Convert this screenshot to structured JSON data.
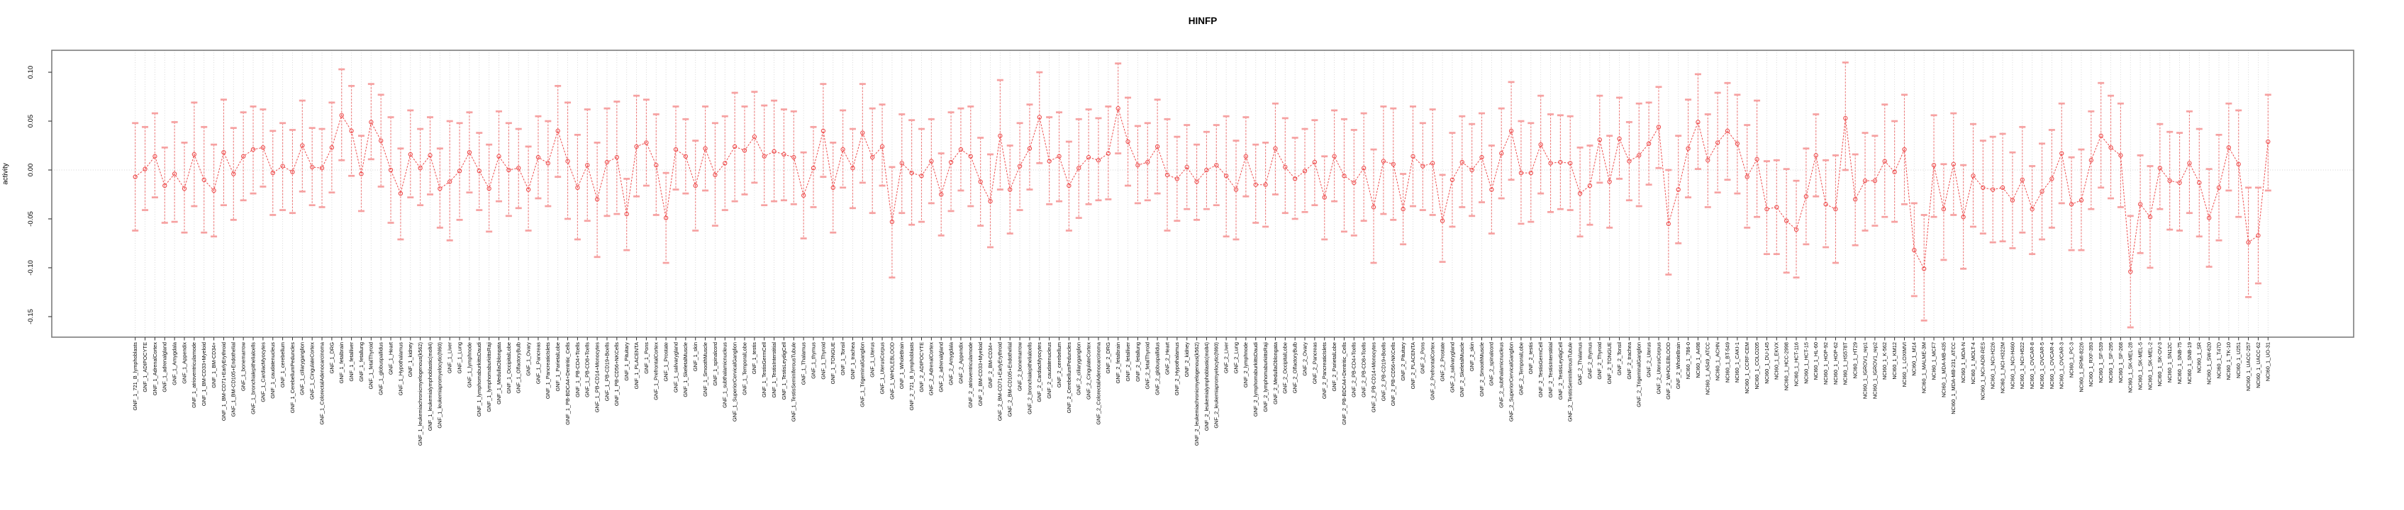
{
  "chart_data": {
    "type": "line",
    "subtype": "point-estimates-with-error-bars",
    "title": "HINFP",
    "ylabel": "activity",
    "xlabel": "",
    "ylim": [
      -0.171,
      0.122
    ],
    "yticks": [
      0.1,
      0.05,
      0.0,
      -0.05,
      -0.1,
      -0.15
    ],
    "ytick_labels": [
      "0.10",
      "0.05",
      "0.00",
      "-0.05",
      "-0.10",
      "-0.15"
    ],
    "grid": "vertical dotted gridline per category; dotted horizontal line at y=0; no legend",
    "colors": {
      "point": "#ee4b4b",
      "line": "#ee4b4b",
      "whisker": "#ee6a6a",
      "cap": "#f6a1a1",
      "grid": "#d4d4d4",
      "border": "#7d7d7d",
      "text": "#000000"
    },
    "categories": [
      "GNF_1_721_B_lymphoblasts",
      "GNF_1_ADIPOCYTE",
      "GNF_1_AdrenalCortex",
      "GNF_1_adrenalgland",
      "GNF_1_Amygdala",
      "GNF_1_Appendix",
      "GNF_1_atrioventricularnode",
      "GNF_1_BM-CD33+Myeloid",
      "GNF_1_BM-CD34+",
      "GNF_1_BM-CD71+EarlyErythroid",
      "GNF_1_BM-CD105+Endothelial",
      "GNF_1_bonemarrow",
      "GNF_1_bronchialepithelialcells",
      "GNF_1_CardiacMyocytes",
      "GNF_1_caudatenucleus",
      "GNF_1_cerebellum",
      "GNF_1_CerebellumPeduncles",
      "GNF_1_ciliaryganglion",
      "GNF_1_CingulateCortex",
      "GNF_1_ColorectalAdenocarcinoma",
      "GNF_1_DRG",
      "GNF_1_fetalbrain",
      "GNF_1_fetalliver",
      "GNF_1_fetallung",
      "GNF_1_fetalThyroid",
      "GNF_1_globuspallidus",
      "GNF_1_Heart",
      "GNF_1_Hypothalamus",
      "GNF_1_kidney",
      "GNF_1_leukemiachronicmyelogenous(k562)",
      "GNF_1_leukemialymphoblastic(molt4)",
      "GNF_1_leukemiapromyelocytic(hl60)",
      "GNF_1_Liver",
      "GNF_1_Lung",
      "GNF_1_lymphnode",
      "GNF_1_lymphomaburkittsDaudi",
      "GNF_1_lymphomaburkittsRaji",
      "GNF_1_MedullaOblongata",
      "GNF_1_OccipitalLobe",
      "GNF_1_OlfactoryBulb",
      "GNF_1_Ovary",
      "GNF_1_Pancreas",
      "GNF_1_PancreaticIslets",
      "GNF_1_ParietalLobe",
      "GNF_1_PB-BDCA4+Dentritic_Cells",
      "GNF_1_PB-CD4+Tcells",
      "GNF_1_PB-CD8+Tcells",
      "GNF_1_PB-CD14+Monocytes",
      "GNF_1_PB-CD19+Bcells",
      "GNF_1_PB-CD56+NKCells",
      "GNF_1_Pituitary",
      "GNF_1_PLACENTA",
      "GNF_1_Pons",
      "GNF_1_PrefrontalCortex",
      "GNF_1_Prostate",
      "GNF_1_salivarygland",
      "GNF_1_SkeletalMuscle",
      "GNF_1_skin",
      "GNF_1_SmoothMuscle",
      "GNF_1_spinalcord",
      "GNF_1_subthalamicnucleus",
      "GNF_1_SuperiorCervicalGanglion",
      "GNF_1_TemporalLobe",
      "GNF_1_testis",
      "GNF_1_TestisGermCell",
      "GNF_1_TestisInterstitial",
      "GNF_1_TestisLeydigCell",
      "GNF_1_TestisSeminiferousTubule",
      "GNF_1_Thalamus",
      "GNF_1_thymus",
      "GNF_1_Thyroid",
      "GNF_1_TONGUE",
      "GNF_1_Tonsil",
      "GNF_1_trachea",
      "GNF_1_TrigeminalGanglion",
      "GNF_1_Uterus",
      "GNF_1_UterusCorpus",
      "GNF_1_WHOLEBLOOD",
      "GNF_1_WholeBrain",
      "GNF_2_721_B_lymphoblasts",
      "GNF_2_ADIPOCYTE",
      "GNF_2_AdrenalCortex",
      "GNF_2_adrenalgland",
      "GNF_2_Amygdala",
      "GNF_2_Appendix",
      "GNF_2_atrioventricularnode",
      "GNF_2_BM-CD33+Myeloid",
      "GNF_2_BM-CD34+",
      "GNF_2_BM-CD71+EarlyErythroid",
      "GNF_2_BM-CD105+Endothelial",
      "GNF_2_bonemarrow",
      "GNF_2_bronchialepithelialcells",
      "GNF_2_CardiacMyocytes",
      "GNF_2_caudatenucleus",
      "GNF_2_cerebellum",
      "GNF_2_CerebellumPeduncles",
      "GNF_2_ciliaryganglion",
      "GNF_2_CingulateCortex",
      "GNF_2_ColorectalAdenocarcinoma",
      "GNF_2_DRG",
      "GNF_2_fetalbrain",
      "GNF_2_fetalliver",
      "GNF_2_fetallung",
      "GNF_2_fetalThyroid",
      "GNF_2_globuspallidus",
      "GNF_2_Heart",
      "GNF_2_Hypothalamus",
      "GNF_2_kidney",
      "GNF_2_leukemiachronicmyelogenous(k562)",
      "GNF_2_leukemialymphoblastic(molt4)",
      "GNF_2_leukemiapromyelocytic(hl60)",
      "GNF_2_Liver",
      "GNF_2_Lung",
      "GNF_2_lymphnode",
      "GNF_2_lymphomaburkittsDaudi",
      "GNF_2_lymphomaburkittsRaji",
      "GNF_2_MedullaOblongata",
      "GNF_2_OccipitalLobe",
      "GNF_2_OlfactoryBulb",
      "GNF_2_Ovary",
      "GNF_2_Pancreas",
      "GNF_2_PancreaticIslets",
      "GNF_2_ParietalLobe",
      "GNF_2_PB-BDCA4+Dentritic_Cells",
      "GNF_2_PB-CD4+Tcells",
      "GNF_2_PB-CD8+Tcells",
      "GNF_2_PB-CD14+Monocytes",
      "GNF_2_PB-CD19+Bcells",
      "GNF_2_PB-CD56+NKCells",
      "GNF_2_Pituitary",
      "GNF_2_PLACENTA",
      "GNF_2_Pons",
      "GNF_2_PrefrontalCortex",
      "GNF_2_Prostate",
      "GNF_2_salivarygland",
      "GNF_2_SkeletalMuscle",
      "GNF_2_skin",
      "GNF_2_SmoothMuscle",
      "GNF_2_spinalcord",
      "GNF_2_subthalamicnucleus",
      "GNF_2_SuperiorCervicalGanglion",
      "GNF_2_TemporalLobe",
      "GNF_2_testis",
      "GNF_2_TestisGermCell",
      "GNF_2_TestisInterstitial",
      "GNF_2_TestisLeydigCell",
      "GNF_2_TestisSeminiferousTubule",
      "GNF_2_Thalamus",
      "GNF_2_thymus",
      "GNF_2_Thyroid",
      "GNF_2_TONGUE",
      "GNF_2_Tonsil",
      "GNF_2_trachea",
      "GNF_2_TrigeminalGanglion",
      "GNF_2_Uterus",
      "GNF_2_UterusCorpus",
      "GNF_2_WHOLEBLOOD",
      "GNF_2_WholeBrain",
      "NCI60_1_786-0",
      "NCI60_1_A498",
      "NCI60_1_A549_ATCC",
      "NCI60_1_ACHN",
      "NCI60_1_BT-549",
      "NCI60_1_CAKI-1",
      "NCI60_1_CCRF-CEM",
      "NCI60_1_COLO205",
      "NCI60_1_DU-145",
      "NCI60_1_EKVX",
      "NCI60_1_HCC-2998",
      "NCI60_1_HCT-116",
      "NCI60_1_HCT-15",
      "NCI60_1_HL-60",
      "NCI60_1_HOP-92",
      "NCI60_1_HOP-62",
      "NCI60_1_HS578T",
      "NCI60_1_HT29",
      "NCI60_1_IGROV1_rep1",
      "NCI60_1_IGROV1_rep2",
      "NCI60_1_K-562",
      "NCI60_1_KM12",
      "NCI60_1_LOXIMVI",
      "NCI60_1_M14",
      "NCI60_1_MALME-3M",
      "NCI60_1_MCF7",
      "NCI60_1_MDA-MB-435",
      "NCI60_1_MDA-MB-231_ATCC",
      "NCI60_1_MDA-N",
      "NCI60_1_MOLT-4",
      "NCI60_1_NCI-ADR-RES",
      "NCI60_1_NCI-H226",
      "NCI60_1_NCI-H322M",
      "NCI60_1_NCI-H460",
      "NCI60_1_NCI-H522",
      "NCI60_1_OVCAR-8",
      "NCI60_1_OVCAR-5",
      "NCI60_1_OVCAR-4",
      "NCI60_1_OVCAR-3",
      "NCI60_1_PC-3",
      "NCI60_1_RPMI-8226",
      "NCI60_1_RXF-393",
      "NCI60_1_SF-539",
      "NCI60_1_SF-295",
      "NCI60_1_SF-268",
      "NCI60_1_SK-MEL-28",
      "NCI60_1_SK-MEL-5",
      "NCI60_1_SK-MEL-2",
      "NCI60_1_SK-OV-3",
      "NCI60_1_SN12C",
      "NCI60_1_SNB-75",
      "NCI60_1_SNB-19",
      "NCI60_1_SR",
      "NCI60_1_SW-620",
      "NCI60_1_T47D",
      "NCI60_1_TK-10",
      "NCI60_1_U251",
      "NCI60_1_UACC-257",
      "NCI60_1_UACC-62",
      "NCI60_1_UO-31"
    ],
    "series": [
      {
        "name": "HINFP activity",
        "y": [
          -0.007,
          0.001,
          0.014,
          -0.016,
          -0.004,
          -0.019,
          0.016,
          -0.01,
          -0.021,
          0.018,
          -0.004,
          0.014,
          0.021,
          0.023,
          -0.003,
          0.004,
          -0.002,
          0.025,
          0.003,
          0.002,
          0.023,
          0.056,
          0.04,
          -0.004,
          0.049,
          0.03,
          0.0,
          -0.024,
          0.016,
          0.002,
          0.015,
          -0.019,
          -0.012,
          -0.001,
          0.018,
          -0.001,
          -0.019,
          0.014,
          0.0,
          0.002,
          -0.02,
          0.013,
          0.007,
          0.04,
          0.009,
          -0.018,
          0.005,
          -0.03,
          0.008,
          0.013,
          -0.045,
          0.024,
          0.028,
          0.005,
          -0.049,
          0.021,
          0.014,
          -0.016,
          0.022,
          -0.005,
          0.007,
          0.024,
          0.02,
          0.034,
          0.014,
          0.019,
          0.016,
          0.013,
          -0.026,
          0.002,
          0.04,
          -0.018,
          0.021,
          0.002,
          0.038,
          0.013,
          0.024,
          -0.053,
          0.007,
          -0.003,
          -0.006,
          0.009,
          -0.025,
          0.008,
          0.021,
          0.014,
          -0.012,
          -0.032,
          0.035,
          -0.02,
          0.004,
          0.022,
          0.054,
          0.009,
          0.014,
          -0.016,
          0.002,
          0.013,
          0.01,
          0.017,
          0.063,
          0.029,
          0.005,
          0.008,
          0.024,
          -0.005,
          -0.009,
          0.003,
          -0.012,
          0.0,
          0.005,
          -0.006,
          -0.02,
          0.014,
          -0.015,
          -0.015,
          0.022,
          0.003,
          -0.009,
          -0.001,
          0.008,
          -0.028,
          0.014,
          -0.006,
          -0.013,
          0.002,
          -0.038,
          0.009,
          0.006,
          -0.04,
          0.014,
          0.004,
          0.007,
          -0.052,
          -0.01,
          0.008,
          0.0,
          0.013,
          -0.02,
          0.017,
          0.04,
          -0.003,
          -0.003,
          0.026,
          0.007,
          0.008,
          0.007,
          -0.024,
          -0.016,
          0.031,
          -0.012,
          0.032,
          0.009,
          0.015,
          0.027,
          0.044,
          -0.055,
          -0.02,
          0.022,
          0.049,
          0.01,
          0.028,
          0.04,
          0.027,
          -0.007,
          0.011,
          -0.04,
          -0.038,
          -0.052,
          -0.061,
          -0.027,
          0.015,
          -0.035,
          -0.04,
          0.053,
          -0.03,
          -0.011,
          -0.011,
          0.009,
          -0.002,
          0.021,
          -0.082,
          -0.101,
          0.005,
          -0.04,
          0.006,
          -0.048,
          -0.006,
          -0.018,
          -0.02,
          -0.018,
          -0.031,
          -0.01,
          -0.04,
          -0.022,
          -0.009,
          0.017,
          -0.035,
          -0.031,
          0.01,
          0.035,
          0.023,
          0.015,
          -0.104,
          -0.035,
          -0.048,
          0.002,
          -0.011,
          -0.013,
          0.007,
          -0.013,
          -0.049,
          -0.018,
          0.023,
          0.006,
          -0.074,
          -0.067,
          0.029
        ],
        "hi": [
          0.048,
          0.044,
          0.058,
          0.023,
          0.049,
          0.028,
          0.069,
          0.044,
          0.026,
          0.072,
          0.043,
          0.059,
          0.065,
          0.062,
          0.04,
          0.048,
          0.041,
          0.071,
          0.043,
          0.042,
          0.069,
          0.103,
          0.086,
          0.035,
          0.088,
          0.077,
          0.054,
          0.022,
          0.061,
          0.042,
          0.054,
          0.022,
          0.05,
          0.048,
          0.059,
          0.038,
          0.026,
          0.06,
          0.048,
          0.042,
          0.024,
          0.055,
          0.05,
          0.086,
          0.069,
          0.036,
          0.062,
          0.028,
          0.063,
          0.07,
          -0.009,
          0.076,
          0.072,
          0.057,
          -0.003,
          0.065,
          0.052,
          0.03,
          0.065,
          0.048,
          0.055,
          0.079,
          0.065,
          0.08,
          0.066,
          0.071,
          0.062,
          0.06,
          0.018,
          0.044,
          0.088,
          0.028,
          0.061,
          0.042,
          0.088,
          0.063,
          0.067,
          0.003,
          0.057,
          0.051,
          0.042,
          0.052,
          0.017,
          0.059,
          0.063,
          0.065,
          0.033,
          0.016,
          0.092,
          0.025,
          0.048,
          0.067,
          0.1,
          0.054,
          0.059,
          0.029,
          0.052,
          0.062,
          0.053,
          0.065,
          0.109,
          0.074,
          0.045,
          0.048,
          0.072,
          0.052,
          0.034,
          0.046,
          0.026,
          0.039,
          0.046,
          0.055,
          0.03,
          0.054,
          0.026,
          0.028,
          0.068,
          0.053,
          0.033,
          0.042,
          0.051,
          0.014,
          0.061,
          0.052,
          0.041,
          0.058,
          0.021,
          0.065,
          0.063,
          -0.004,
          0.065,
          0.048,
          0.062,
          -0.005,
          0.038,
          0.055,
          0.047,
          0.058,
          0.025,
          0.063,
          0.09,
          0.05,
          0.048,
          0.076,
          0.057,
          0.056,
          0.055,
          0.023,
          0.025,
          0.076,
          0.035,
          0.074,
          0.049,
          0.068,
          0.069,
          0.085,
          0.0,
          0.035,
          0.072,
          0.098,
          0.057,
          0.079,
          0.089,
          0.077,
          0.046,
          0.071,
          0.009,
          0.01,
          0.001,
          -0.011,
          0.022,
          0.057,
          0.01,
          0.015,
          0.11,
          0.016,
          0.038,
          0.035,
          0.067,
          0.05,
          0.077,
          -0.034,
          -0.046,
          0.056,
          0.006,
          0.058,
          0.005,
          0.047,
          0.03,
          0.034,
          0.037,
          0.018,
          0.044,
          0.004,
          0.027,
          0.041,
          0.068,
          0.013,
          0.021,
          0.06,
          0.089,
          0.076,
          0.068,
          -0.047,
          0.015,
          0.004,
          0.047,
          0.039,
          0.038,
          0.06,
          0.042,
          0.001,
          0.036,
          0.068,
          0.061,
          -0.018,
          -0.018,
          0.077
        ],
        "lo": [
          -0.062,
          -0.041,
          -0.028,
          -0.054,
          -0.053,
          -0.064,
          -0.037,
          -0.064,
          -0.068,
          -0.036,
          -0.051,
          -0.031,
          -0.024,
          -0.017,
          -0.046,
          -0.041,
          -0.044,
          -0.022,
          -0.036,
          -0.038,
          -0.023,
          0.01,
          -0.006,
          -0.042,
          0.011,
          -0.017,
          -0.054,
          -0.071,
          -0.028,
          -0.036,
          -0.025,
          -0.059,
          -0.072,
          -0.051,
          -0.023,
          -0.041,
          -0.063,
          -0.032,
          -0.047,
          -0.039,
          -0.062,
          -0.029,
          -0.037,
          -0.007,
          -0.05,
          -0.071,
          -0.052,
          -0.089,
          -0.047,
          -0.045,
          -0.082,
          -0.027,
          -0.016,
          -0.046,
          -0.095,
          -0.02,
          -0.024,
          -0.062,
          -0.021,
          -0.057,
          -0.041,
          -0.032,
          -0.025,
          -0.013,
          -0.036,
          -0.032,
          -0.031,
          -0.035,
          -0.07,
          -0.038,
          -0.007,
          -0.064,
          -0.018,
          -0.039,
          -0.013,
          -0.044,
          -0.016,
          -0.11,
          -0.044,
          -0.056,
          -0.053,
          -0.034,
          -0.067,
          -0.042,
          -0.021,
          -0.037,
          -0.057,
          -0.079,
          -0.02,
          -0.065,
          -0.041,
          -0.02,
          0.007,
          -0.035,
          -0.032,
          -0.062,
          -0.049,
          -0.035,
          -0.031,
          -0.03,
          0.017,
          -0.016,
          -0.034,
          -0.031,
          -0.024,
          -0.062,
          -0.052,
          -0.04,
          -0.051,
          -0.04,
          -0.036,
          -0.068,
          -0.071,
          -0.027,
          -0.054,
          -0.058,
          -0.025,
          -0.044,
          -0.05,
          -0.043,
          -0.036,
          -0.071,
          -0.032,
          -0.063,
          -0.067,
          -0.052,
          -0.095,
          -0.045,
          -0.051,
          -0.076,
          -0.037,
          -0.041,
          -0.046,
          -0.094,
          -0.058,
          -0.038,
          -0.047,
          -0.033,
          -0.065,
          -0.029,
          -0.01,
          -0.055,
          -0.053,
          -0.024,
          -0.043,
          -0.04,
          -0.041,
          -0.068,
          -0.056,
          -0.013,
          -0.059,
          -0.009,
          -0.031,
          -0.037,
          -0.015,
          0.002,
          -0.107,
          -0.075,
          -0.028,
          0.001,
          -0.038,
          -0.023,
          -0.01,
          -0.024,
          -0.059,
          -0.048,
          -0.086,
          -0.086,
          -0.105,
          -0.11,
          -0.076,
          -0.027,
          -0.079,
          -0.095,
          0.0,
          -0.077,
          -0.062,
          -0.057,
          -0.048,
          -0.053,
          -0.035,
          -0.129,
          -0.154,
          -0.048,
          -0.092,
          -0.046,
          -0.101,
          -0.058,
          -0.065,
          -0.074,
          -0.073,
          -0.08,
          -0.064,
          -0.086,
          -0.071,
          -0.059,
          -0.034,
          -0.082,
          -0.082,
          -0.04,
          -0.018,
          -0.029,
          -0.038,
          -0.161,
          -0.085,
          -0.1,
          -0.04,
          -0.061,
          -0.062,
          -0.044,
          -0.068,
          -0.099,
          -0.072,
          -0.021,
          -0.048,
          -0.13,
          -0.116,
          -0.021
        ]
      }
    ]
  }
}
